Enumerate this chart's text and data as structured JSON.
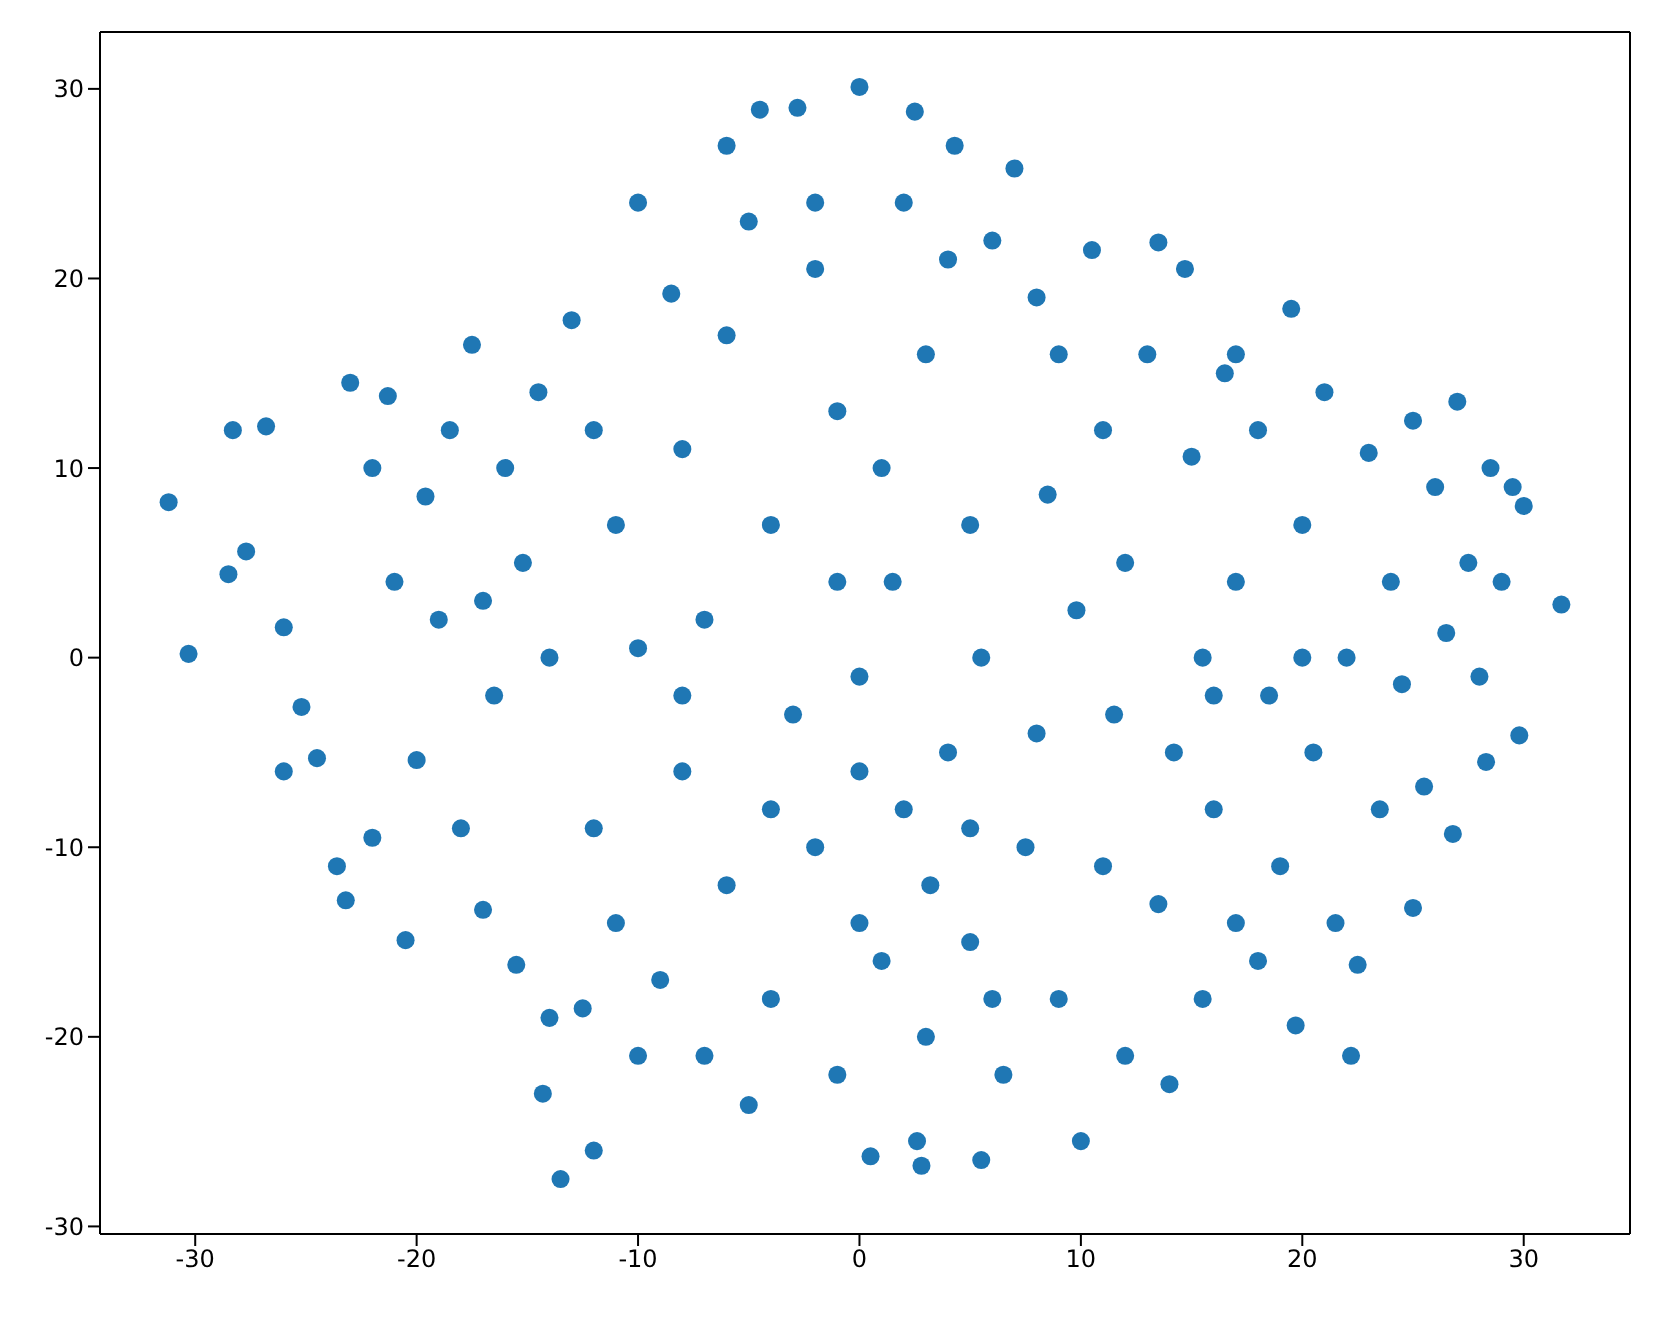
{
  "chart_data": {
    "type": "scatter",
    "xlim": [
      -34.3,
      34.8
    ],
    "ylim": [
      -30.4,
      33.0
    ],
    "xticks": [
      -30,
      -20,
      -10,
      0,
      10,
      20,
      30
    ],
    "yticks": [
      -30,
      -20,
      -10,
      0,
      10,
      20,
      30
    ],
    "grid": false,
    "marker": "circle",
    "series": [
      {
        "color": "#1f77b4",
        "x": [
          -31.2,
          -30.3,
          -28.5,
          -28.3,
          -27.7,
          -26.8,
          -26,
          -25.2,
          -24.5,
          -23.6,
          -23.2,
          -23,
          -22,
          -21.3,
          -20.5,
          -20,
          -19.6,
          -19,
          -18.5,
          -18,
          -17.5,
          -17,
          -16.5,
          -16,
          -15.5,
          -15.2,
          -14.5,
          -14.3,
          -14,
          -13.5,
          -13,
          -12.5,
          -12,
          -12,
          -11,
          -11,
          -10,
          -10,
          -9,
          -8.5,
          -8,
          -8,
          -7,
          -7,
          -6,
          -6,
          -5,
          -5,
          -4.5,
          -4,
          -4,
          -3,
          -2.8,
          -2,
          -2,
          -1,
          -1,
          0,
          0,
          0,
          0.5,
          1,
          1,
          1.5,
          2,
          2,
          2.5,
          2.6,
          2.8,
          3,
          3,
          3.2,
          4,
          4.3,
          5,
          5,
          5.5,
          5.5,
          6,
          6.5,
          7,
          7.5,
          8,
          8,
          8.5,
          9,
          9.8,
          10,
          10.5,
          11,
          11,
          11.5,
          12,
          12,
          13,
          13.5,
          13.5,
          14,
          14.2,
          14.7,
          15,
          15.5,
          15.5,
          16,
          16.5,
          17,
          17,
          18,
          18,
          18.5,
          19,
          19.5,
          19.7,
          20,
          20.5,
          21,
          21.5,
          22,
          22.2,
          22.5,
          23,
          23.5,
          24,
          24.5,
          25,
          25,
          25.5,
          26,
          26.5,
          26.8,
          27,
          27.5,
          28,
          28.3,
          28.5,
          29,
          29.5,
          29.8,
          30,
          31.7,
          -21,
          -26,
          -22,
          -17,
          -12,
          -6,
          -2,
          4,
          9,
          17,
          16,
          5,
          -4,
          -8,
          -1,
          -14,
          0,
          6,
          -10,
          20
        ],
        "values": [
          8.2,
          0.2,
          4.4,
          12,
          5.6,
          12.2,
          1.6,
          -2.6,
          -5.3,
          -11,
          -12.8,
          14.5,
          -9.5,
          13.8,
          -14.9,
          -5.4,
          8.5,
          2,
          12,
          -9,
          16.5,
          -13.3,
          -2,
          10,
          -16.2,
          5,
          14,
          -23,
          -19,
          -27.5,
          17.8,
          -18.5,
          -26,
          -9,
          7,
          -14,
          24,
          0.5,
          -17,
          19.2,
          11,
          -6,
          -21,
          2,
          27,
          -12,
          23,
          -23.6,
          28.9,
          7,
          -18,
          -3,
          29,
          -10,
          20.5,
          13,
          -22,
          30.1,
          -1,
          -14,
          -26.3,
          -16,
          10,
          4,
          -8,
          24,
          28.8,
          -25.5,
          -26.8,
          -20,
          16,
          -12,
          -5,
          27,
          -15,
          7,
          0,
          -26.5,
          22,
          -22,
          25.8,
          -10,
          19,
          -4,
          8.6,
          -18,
          2.5,
          -25.5,
          21.5,
          12,
          -11,
          -3,
          -21,
          5,
          16,
          21.9,
          -13,
          -22.5,
          -5,
          20.5,
          10.6,
          0,
          -18,
          -8,
          15,
          4,
          -14,
          -16,
          12,
          -2,
          -11,
          18.4,
          -19.4,
          7,
          -5,
          14,
          -14,
          0,
          -21,
          -16.2,
          10.8,
          -8,
          4,
          -1.4,
          12.5,
          -13.2,
          -6.8,
          9,
          1.3,
          -9.3,
          13.5,
          5,
          -1,
          -5.5,
          10,
          4,
          9,
          -4.1,
          8,
          2.8,
          4,
          -6,
          10,
          3,
          12,
          17,
          24,
          21,
          16,
          16,
          -2,
          -9,
          -8,
          -2,
          4,
          0,
          -6,
          -18,
          -21,
          0
        ]
      }
    ]
  }
}
